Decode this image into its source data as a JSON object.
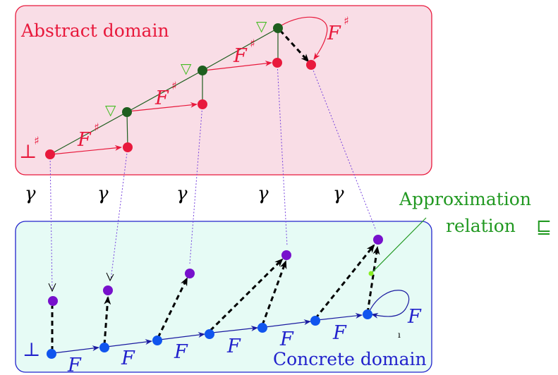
{
  "abstract": {
    "title": "Abstract domain",
    "bottom_label": "⊥",
    "sharp": "♯",
    "widen": "▽",
    "transfer": "F",
    "color": "#e8193c",
    "fill": "#f9dde6",
    "node_color": "#e8193c",
    "widen_node_color": "#1e5e1e",
    "widen_color": "#44bb22"
  },
  "concrete": {
    "title": "Concrete domain",
    "bottom_label": "⊥",
    "transfer": "F",
    "color": "#2222cc",
    "fill": "#e6fbf5",
    "node_color": "#1155ee",
    "point_color": "#7711cc",
    "stray_mark": "ı"
  },
  "gamma": {
    "label": "γ",
    "color": "#7744dd"
  },
  "approximation": {
    "line1": "Approximation",
    "line2": "relation",
    "symbol": "⊑",
    "color": "#229922",
    "dot_color": "#88ee22"
  }
}
